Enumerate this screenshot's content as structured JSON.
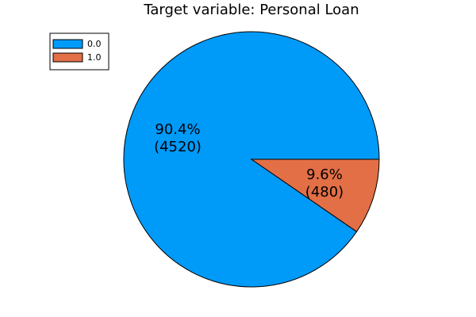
{
  "chart_data": {
    "type": "pie",
    "title": "Target variable: Personal Loan",
    "legend_position": "top-left",
    "slices": [
      {
        "label": "0.0",
        "value": 4520,
        "percent_label": "90.4%",
        "count_label": "(4520)",
        "color": "#009AF9"
      },
      {
        "label": "1.0",
        "value": 480,
        "percent_label": "9.6%",
        "count_label": "(480)",
        "color": "#E26F46"
      }
    ]
  }
}
